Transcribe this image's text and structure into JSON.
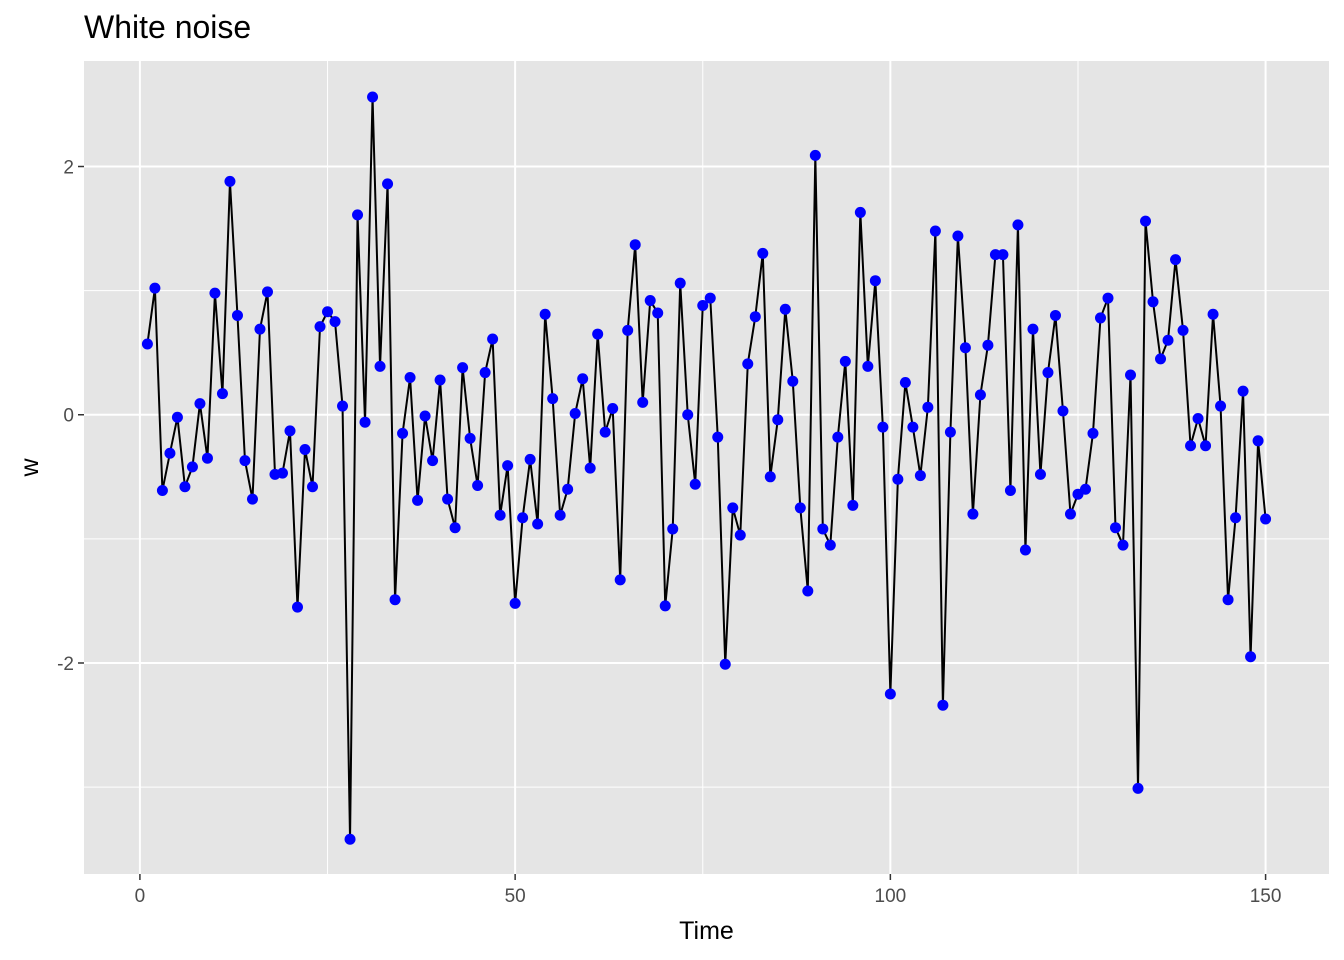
{
  "chart_data": {
    "type": "line",
    "title": "White noise",
    "xlabel": "Time",
    "ylabel": "w",
    "xlim": [
      -7.45,
      158.45
    ],
    "ylim": [
      -3.7,
      2.85
    ],
    "x_major_ticks": [
      0,
      50,
      100,
      150
    ],
    "x_minor_ticks": [
      25,
      75,
      125
    ],
    "y_major_ticks": [
      -2,
      0,
      2
    ],
    "y_minor_ticks": [
      -3,
      -1,
      1
    ],
    "x_tick_labels": [
      "0",
      "50",
      "100",
      "150"
    ],
    "y_tick_labels": [
      "-2",
      "0",
      "2"
    ],
    "grid": true,
    "legend": "none",
    "colors": {
      "line": "#000000",
      "points": "#0000ff",
      "panel": "#e5e5e5",
      "grid": "#ffffff"
    },
    "series": [
      {
        "x": [
          1,
          2,
          3,
          4,
          5,
          6,
          7,
          8,
          9,
          10,
          11,
          12,
          13,
          14,
          15,
          16,
          17,
          18,
          19,
          20,
          21,
          22,
          23,
          24,
          25,
          26,
          27,
          28,
          29,
          30,
          31,
          32,
          33,
          34,
          35,
          36,
          37,
          38,
          39,
          40,
          41,
          42,
          43,
          44,
          45,
          46,
          47,
          48,
          49,
          50,
          51,
          52,
          53,
          54,
          55,
          56,
          57,
          58,
          59,
          60,
          61,
          62,
          63,
          64,
          65,
          66,
          67,
          68,
          69,
          70,
          71,
          72,
          73,
          74,
          75,
          76,
          77,
          78,
          79,
          80,
          81,
          82,
          83,
          84,
          85,
          86,
          87,
          88,
          89,
          90,
          91,
          92,
          93,
          94,
          95,
          96,
          97,
          98,
          99,
          100,
          101,
          102,
          103,
          104,
          105,
          106,
          107,
          108,
          109,
          110,
          111,
          112,
          113,
          114,
          115,
          116,
          117,
          118,
          119,
          120,
          121,
          122,
          123,
          124,
          125,
          126,
          127,
          128,
          129,
          130,
          131,
          132,
          133,
          134,
          135,
          136,
          137,
          138,
          139,
          140,
          141,
          142,
          143,
          144,
          145,
          146,
          147,
          148,
          149,
          150
        ],
        "y": [
          0.57,
          1.02,
          -0.61,
          -0.31,
          -0.02,
          -0.58,
          -0.42,
          0.09,
          -0.35,
          0.98,
          0.17,
          1.88,
          0.8,
          -0.37,
          -0.68,
          0.69,
          0.99,
          -0.48,
          -0.47,
          -0.13,
          -1.55,
          -0.28,
          -0.58,
          0.71,
          0.83,
          0.75,
          0.07,
          -3.42,
          1.61,
          -0.06,
          2.56,
          0.39,
          1.86,
          -1.49,
          -0.15,
          0.3,
          -0.69,
          -0.01,
          -0.37,
          0.28,
          -0.68,
          -0.91,
          0.38,
          -0.19,
          -0.57,
          0.34,
          0.61,
          -0.81,
          -0.41,
          -1.52,
          -0.83,
          -0.36,
          -0.88,
          0.81,
          0.13,
          -0.81,
          -0.6,
          0.01,
          0.29,
          -0.43,
          0.65,
          -0.14,
          0.05,
          -1.33,
          0.68,
          1.37,
          0.1,
          0.92,
          0.82,
          -1.54,
          -0.92,
          1.06,
          0.0,
          -0.56,
          0.88,
          0.94,
          -0.18,
          -2.01,
          -0.75,
          -0.97,
          0.41,
          0.79,
          1.3,
          -0.5,
          -0.04,
          0.85,
          0.27,
          -0.75,
          -1.42,
          2.09,
          -0.92,
          -1.05,
          -0.18,
          0.43,
          -0.73,
          1.63,
          0.39,
          1.08,
          -0.1,
          -2.25,
          -0.52,
          0.26,
          -0.1,
          -0.49,
          0.06,
          1.48,
          -2.34,
          -0.14,
          1.44,
          0.54,
          -0.8,
          0.16,
          0.56,
          1.29,
          1.29,
          -0.61,
          1.53,
          -1.09,
          0.69,
          -0.48,
          0.34,
          0.8,
          0.03,
          -0.8,
          -0.64,
          -0.6,
          -0.15,
          0.78,
          0.94,
          -0.91,
          -1.05,
          0.32,
          -3.01,
          1.56,
          0.91,
          0.45,
          0.6,
          1.25,
          0.68,
          -0.25,
          -0.03,
          -0.25,
          0.81,
          0.07,
          -1.49,
          -0.83,
          0.19,
          -1.95,
          -0.21,
          -0.84
        ]
      }
    ]
  }
}
